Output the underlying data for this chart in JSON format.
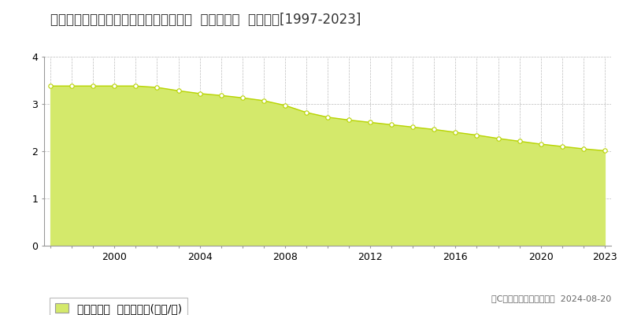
{
  "title": "新潟県岩船郡関川村大字大島３８６番１  基準地価格  地価推移[1997-2023]",
  "years": [
    1997,
    1998,
    1999,
    2000,
    2001,
    2002,
    2003,
    2004,
    2005,
    2006,
    2007,
    2008,
    2009,
    2010,
    2011,
    2012,
    2013,
    2014,
    2015,
    2016,
    2017,
    2018,
    2019,
    2020,
    2021,
    2022,
    2023
  ],
  "values": [
    3.38,
    3.38,
    3.38,
    3.38,
    3.38,
    3.35,
    3.28,
    3.22,
    3.18,
    3.13,
    3.07,
    2.97,
    2.82,
    2.72,
    2.66,
    2.61,
    2.56,
    2.51,
    2.46,
    2.4,
    2.34,
    2.27,
    2.21,
    2.15,
    2.1,
    2.05,
    2.01
  ],
  "fill_color": "#d4e96b",
  "line_color": "#b8d400",
  "marker_facecolor": "#ffffff",
  "marker_edgecolor": "#b8d400",
  "background_color": "#ffffff",
  "grid_color": "#bbbbbb",
  "ylim": [
    0,
    4
  ],
  "yticks": [
    0,
    1,
    2,
    3,
    4
  ],
  "xtick_labels": [
    2000,
    2004,
    2008,
    2012,
    2016,
    2020,
    2023
  ],
  "legend_label": "基準地価格  平均坪単価(万円/坪)",
  "copyright_text": "（C）土地価格ドットコム  2024-08-20",
  "title_fontsize": 12,
  "axis_fontsize": 9,
  "legend_fontsize": 10,
  "copyright_fontsize": 8
}
